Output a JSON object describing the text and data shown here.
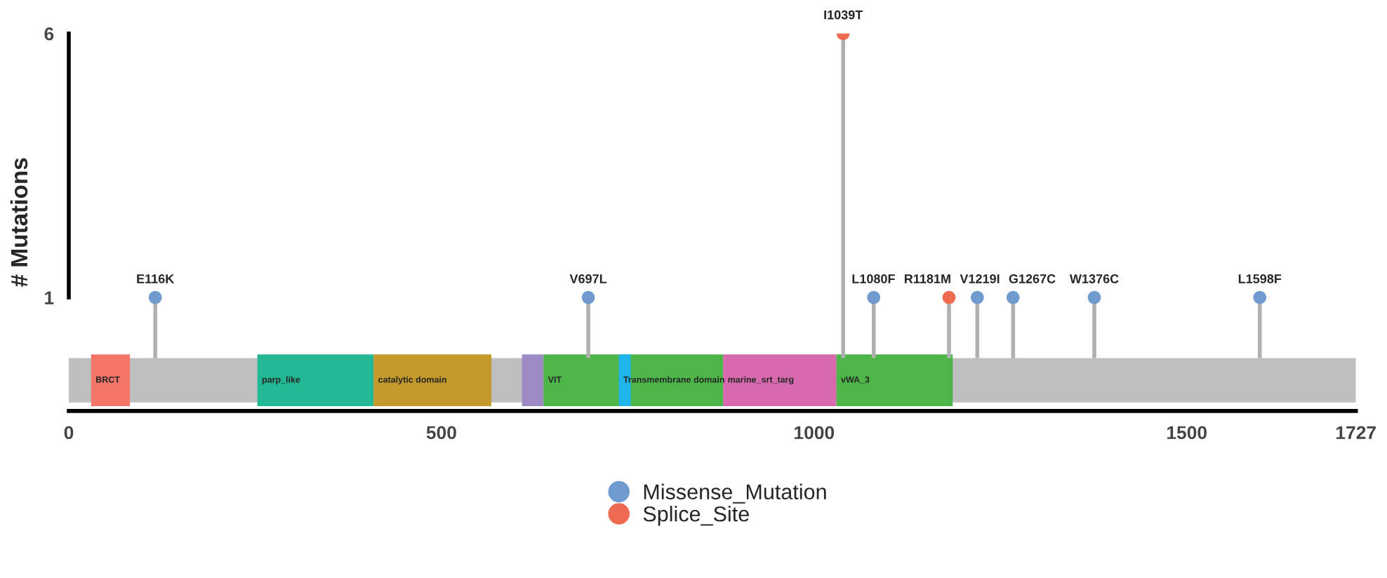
{
  "chart_data": {
    "type": "lollipop",
    "ylabel": "# Mutations",
    "xlim": [
      0,
      1727
    ],
    "xticks": [
      0,
      500,
      1000,
      1500,
      1727
    ],
    "ylim": [
      -1.15,
      6
    ],
    "yticks": [
      1,
      6
    ],
    "grid": false,
    "legend": "bottom",
    "marker": "circle",
    "series": [
      {
        "name": "Missense_Mutation",
        "color": "#6f9bcf",
        "x": [
          116,
          697,
          1080,
          1219,
          1267,
          1376,
          1598
        ],
        "values": [
          1,
          1,
          1,
          1,
          1,
          1,
          1
        ],
        "value_labels": [
          "E116K",
          "V697L",
          "L1080F",
          "V1219I",
          "G1267C",
          "W1376C",
          "L1598F"
        ]
      },
      {
        "name": "Splice_Site",
        "color": "#ee6a50",
        "x": [
          1039,
          1181
        ],
        "values": [
          6,
          1
        ],
        "value_labels": [
          "I1039T",
          "R1181M"
        ]
      }
    ],
    "bands": [
      {
        "axis": "x",
        "from": 0,
        "to": 1727,
        "color": "#bebfbe"
      },
      {
        "axis": "x",
        "from": 30,
        "to": 82,
        "label": "BRCT",
        "color": "#f4766b"
      },
      {
        "axis": "x",
        "from": 253,
        "to": 409,
        "label": "parp_like",
        "color": "#22b894"
      },
      {
        "axis": "x",
        "from": 409,
        "to": 567,
        "label": "catalytic domain",
        "color": "#c49a2c"
      },
      {
        "axis": "x",
        "from": 608,
        "to": 637,
        "color": "#9b8ac4"
      },
      {
        "axis": "x",
        "from": 637,
        "to": 878,
        "label": "VIT",
        "color": "#4cb648"
      },
      {
        "axis": "x",
        "from": 738,
        "to": 754,
        "label": "Transmembrane domain",
        "color": "#1fb5ea"
      },
      {
        "axis": "x",
        "from": 878,
        "to": 1030,
        "label": "marine_srt_targ",
        "color": "#d76aae"
      },
      {
        "axis": "x",
        "from": 1030,
        "to": 1186,
        "label": "vWA_3",
        "color": "#4cb648"
      }
    ]
  }
}
